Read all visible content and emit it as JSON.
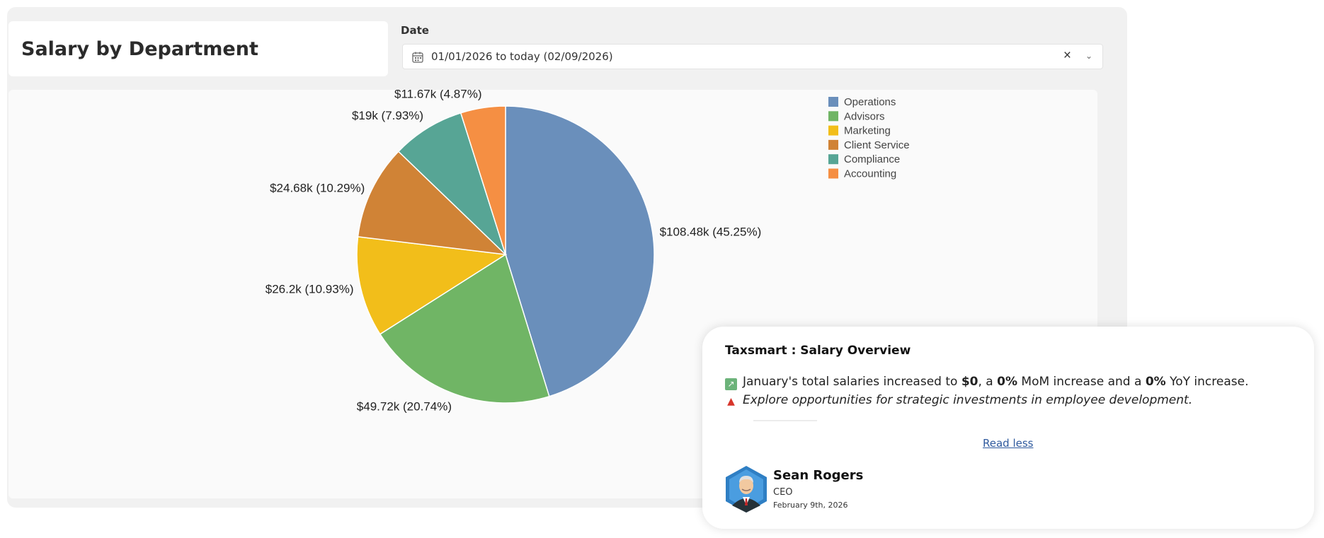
{
  "page": {
    "title": "Salary by Department"
  },
  "filter": {
    "label": "Date",
    "value": "01/01/2026 to today (02/09/2026)",
    "clear_symbol": "×",
    "dropdown_symbol": "⌄"
  },
  "chart_data": {
    "type": "pie",
    "title": "Salary by Department",
    "legend_position": "top-right",
    "start_angle_deg": 0,
    "direction": "clockwise",
    "slices": [
      {
        "name": "Operations",
        "value": 108.48,
        "percent": 45.25,
        "label": "$108.48k (45.25%)",
        "color": "#6a8fbb"
      },
      {
        "name": "Advisors",
        "value": 49.72,
        "percent": 20.74,
        "label": "$49.72k (20.74%)",
        "color": "#70b565"
      },
      {
        "name": "Marketing",
        "value": 26.2,
        "percent": 10.93,
        "label": "$26.2k (10.93%)",
        "color": "#f2be1a"
      },
      {
        "name": "Client Service",
        "value": 24.68,
        "percent": 10.29,
        "label": "$24.68k (10.29%)",
        "color": "#d08336"
      },
      {
        "name": "Compliance",
        "value": 19,
        "percent": 7.93,
        "label": "$19k (7.93%)",
        "color": "#57a595"
      },
      {
        "name": "Accounting",
        "value": 11.67,
        "percent": 4.87,
        "label": "$11.67k (4.87%)",
        "color": "#f58f43"
      }
    ]
  },
  "overview": {
    "title": "Taxsmart : Salary Overview",
    "line1": {
      "icon": "chart-increasing-icon",
      "t1": "January's total salaries increased to ",
      "b1": "$0",
      "t2": ", a ",
      "b2": "0%",
      "t3": " MoM increase and a ",
      "b3": "0%",
      "t4": " YoY increase."
    },
    "line2": {
      "icon": "alarm-light-icon",
      "text": "Explore opportunities for strategic investments in employee development."
    },
    "read_less": "Read less",
    "author": {
      "name": "Sean Rogers",
      "role": "CEO",
      "date": "February 9th, 2026"
    }
  }
}
